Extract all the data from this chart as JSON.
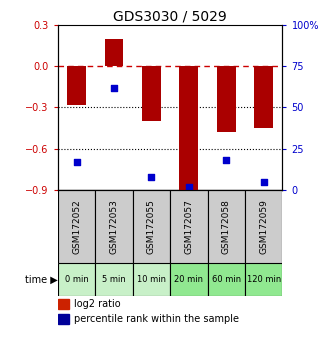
{
  "title": "GDS3030 / 5029",
  "samples": [
    "GSM172052",
    "GSM172053",
    "GSM172055",
    "GSM172057",
    "GSM172058",
    "GSM172059"
  ],
  "time_labels": [
    "0 min",
    "5 min",
    "10 min",
    "20 min",
    "60 min",
    "120 min"
  ],
  "log2_ratio": [
    -0.28,
    0.2,
    -0.4,
    -0.9,
    -0.48,
    -0.45
  ],
  "percentile_rank": [
    17,
    62,
    8,
    2,
    18,
    5
  ],
  "ylim_left": [
    -0.9,
    0.3
  ],
  "ylim_right": [
    0,
    100
  ],
  "yticks_left": [
    -0.9,
    -0.6,
    -0.3,
    0,
    0.3
  ],
  "yticks_right": [
    0,
    25,
    50,
    75,
    100
  ],
  "bar_color": "#aa0000",
  "dot_color": "#0000cc",
  "zero_line_color": "#cc0000",
  "grid_color": "#000000",
  "bg_color": "#ffffff",
  "sample_bg": "#cccccc",
  "time_bg_colors": [
    "#c8f0c8",
    "#c8f0c8",
    "#c8f0c8",
    "#90e890",
    "#90e890",
    "#90e890"
  ],
  "legend_bar_color": "#cc2200",
  "legend_dot_color": "#000099"
}
